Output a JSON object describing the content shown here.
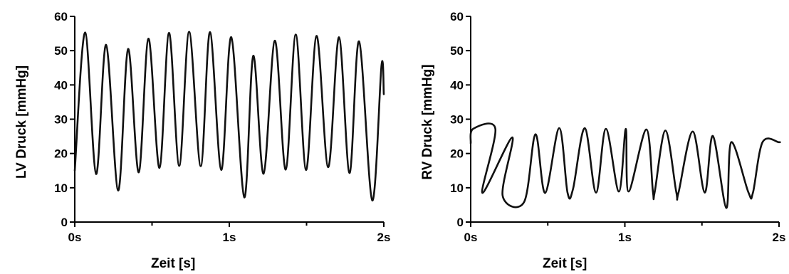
{
  "chart_data": [
    {
      "type": "line",
      "title": "",
      "xlabel": "Zeit [s]",
      "ylabel": "LV Druck [mmHg]",
      "xlim": [
        0,
        2
      ],
      "ylim": [
        0,
        60
      ],
      "x_ticks": [
        {
          "value": 0,
          "label": "0s"
        },
        {
          "value": 1,
          "label": "1s"
        },
        {
          "value": 2,
          "label": "2s"
        }
      ],
      "y_ticks": [
        {
          "value": 0,
          "label": "0"
        },
        {
          "value": 10,
          "label": "10"
        },
        {
          "value": 20,
          "label": "20"
        },
        {
          "value": 30,
          "label": "30"
        },
        {
          "value": 40,
          "label": "40"
        },
        {
          "value": 50,
          "label": "50"
        },
        {
          "value": 60,
          "label": "60"
        }
      ],
      "x_minor_ticks": [
        0.5,
        1.5
      ],
      "grid": false,
      "series": [
        {
          "x": [
            0,
            0.067,
            0.138,
            0.203,
            0.281,
            0.345,
            0.414,
            0.477,
            0.548,
            0.61,
            0.676,
            0.74,
            0.815,
            0.875,
            0.948,
            1.013,
            1.097,
            1.155,
            1.222,
            1.295,
            1.365,
            1.43,
            1.497,
            1.565,
            1.64,
            1.71,
            1.778,
            1.84,
            1.925,
            1.985,
            2.0
          ],
          "y": [
            15,
            55.3,
            14,
            51.7,
            9.2,
            50.5,
            14.5,
            53.5,
            15.8,
            55.2,
            16.4,
            55.5,
            16.3,
            55.4,
            15.2,
            53.9,
            7.2,
            48.5,
            14.1,
            52.9,
            15.3,
            54.7,
            15.2,
            54.3,
            16,
            53.9,
            14.3,
            52.7,
            6.3,
            45.7,
            37.3
          ]
        }
      ]
    },
    {
      "type": "line",
      "title": "",
      "xlabel": "Zeit [s]",
      "ylabel": "RV Druck [mmHg]",
      "xlim": [
        0,
        2
      ],
      "ylim": [
        0,
        60
      ],
      "x_ticks": [
        {
          "value": 0,
          "label": "0s"
        },
        {
          "value": 1,
          "label": "1s"
        },
        {
          "value": 2,
          "label": "2s"
        }
      ],
      "y_ticks": [
        {
          "value": 0,
          "label": "0"
        },
        {
          "value": 10,
          "label": "10"
        },
        {
          "value": 20,
          "label": "20"
        },
        {
          "value": 30,
          "label": "30"
        },
        {
          "value": 40,
          "label": "40"
        },
        {
          "value": 50,
          "label": "50"
        },
        {
          "value": 60,
          "label": "60"
        }
      ],
      "x_minor_ticks": [
        0.5,
        1.5
      ],
      "grid": false,
      "series": [
        {
          "x": [
            0,
            0.016,
            0.16,
            0.076,
            0.27,
            0.207,
            0.347,
            0.42,
            0.483,
            0.574,
            0.628,
            0.664,
            0.74,
            0.813,
            0.877,
            0.961,
            1.006,
            1.024,
            1.139,
            1.182,
            1.194,
            1.263,
            1.333,
            1.348,
            1.44,
            1.518,
            1.571,
            1.658,
            1.69,
            1.801,
            1.831,
            1.893,
            1.998,
            2.0
          ],
          "y": [
            23,
            27.2,
            27.2,
            8.5,
            24.7,
            7.7,
            5.9,
            25.6,
            8.5,
            27.4,
            8.6,
            9.7,
            27.4,
            8.6,
            27.2,
            8.9,
            27.2,
            8.9,
            27.0,
            8.9,
            8.9,
            26.7,
            8.9,
            8.6,
            26.4,
            8.6,
            25.1,
            4.1,
            23.3,
            8.7,
            8.6,
            23.3,
            23.3,
            23.3
          ]
        }
      ]
    }
  ]
}
